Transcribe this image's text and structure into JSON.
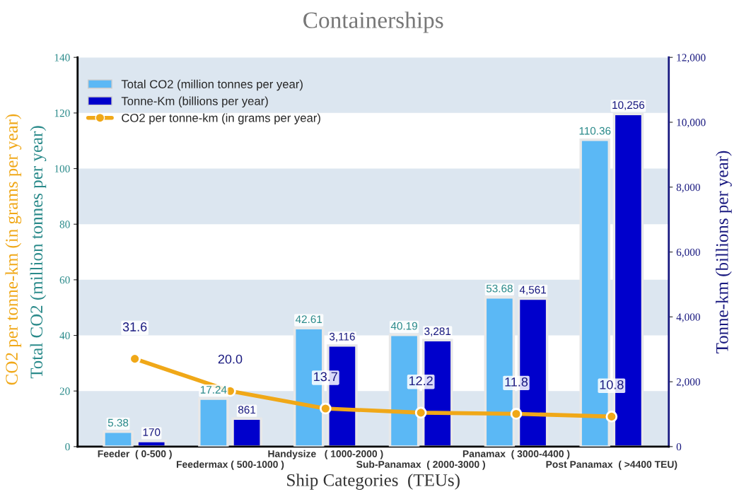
{
  "chart_data": {
    "type": "bar",
    "title": "Containerships",
    "xlabel": "Ship Categories  (TEUs)",
    "ylabel": "Total CO2 (million tonnes per year)",
    "y2label": "Tonne-km (billions per year)",
    "categories": [
      "Feeder  ( 0-500 )",
      "Feedermax ( 500-1000 )",
      "Handysize   ( 1000-2000 )",
      "Sub-Panamax  ( 2000-3000 )",
      "Panamax  ( 3000-4400 )",
      "Post Panamax  ( >4400 TEU)"
    ],
    "series": [
      {
        "name": "Total CO2 (million tonnes per year)",
        "color": "#5bb8f5",
        "values": [
          5.38,
          17.24,
          42.61,
          40.19,
          53.68,
          110.36
        ],
        "value_labels": [
          "5.38",
          "17.24",
          "42.61",
          "40.19",
          "53.68",
          "110.36"
        ]
      },
      {
        "name": "Tonne-Km (billions per year)",
        "color": "#0000cc",
        "axis": "y2",
        "values": [
          170,
          861,
          3116,
          3281,
          4561,
          10256
        ],
        "value_labels": [
          "170",
          "861",
          "3,116",
          "3,281",
          "4,561",
          "10,256"
        ]
      },
      {
        "name": "CO2 per tonne-km (in grams per year)",
        "type": "line",
        "color": "#f0a818",
        "marker": "circle",
        "values": [
          31.6,
          20.0,
          13.7,
          12.2,
          11.8,
          10.8
        ],
        "value_labels": [
          "31.6",
          "20.0",
          "13.7",
          "12.2",
          "11.8",
          "10.8"
        ]
      }
    ],
    "annotations": [
      "CO2 per tonne-km (in grams per year)"
    ],
    "data_labels": true,
    "ylim": [
      0,
      140
    ],
    "yticks": [
      0,
      20,
      40,
      60,
      80,
      100,
      120,
      140
    ],
    "y2lim": [
      0,
      12000
    ],
    "y2ticks": [
      {
        "value": 0,
        "label": "0"
      },
      {
        "value": 2000,
        "label": "2,000"
      },
      {
        "value": 4000,
        "label": "4,000"
      },
      {
        "value": 6000,
        "label": "6,000"
      },
      {
        "value": 8000,
        "label": "8,000"
      },
      {
        "value": 10000,
        "label": "10,000"
      },
      {
        "value": 12000,
        "label": "12,000"
      }
    ],
    "bands": [
      {
        "axis": "y",
        "from": 0,
        "to": 20,
        "color": "#dce6f0"
      },
      {
        "axis": "y",
        "from": 40,
        "to": 60,
        "color": "#dce6f0"
      },
      {
        "axis": "y",
        "from": 80,
        "to": 100,
        "color": "#dce6f0"
      },
      {
        "axis": "y",
        "from": 120,
        "to": 140,
        "color": "#dce6f0"
      }
    ],
    "grid": false,
    "legend": "top left"
  }
}
